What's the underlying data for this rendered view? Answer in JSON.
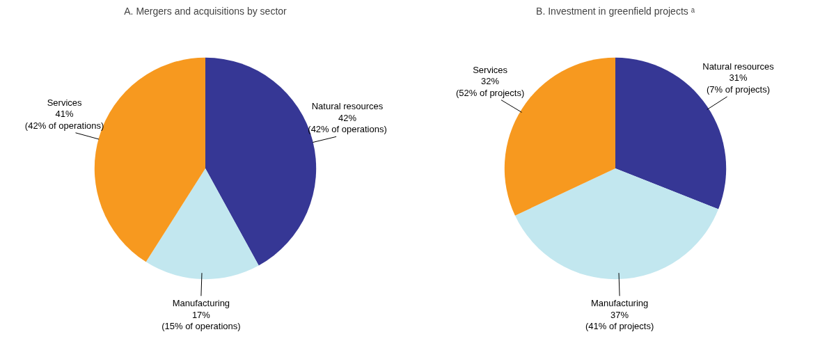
{
  "chart_data": [
    {
      "type": "pie",
      "title": "A. Mergers and acquisitions by sector",
      "categories": [
        "Natural resources",
        "Manufacturing",
        "Services"
      ],
      "values": [
        42,
        17,
        41
      ],
      "colors": [
        "#363795",
        "#c2e7ef",
        "#f7991f"
      ],
      "value_labels": [
        "42%\n(42% of operations)",
        "17%\n(15% of operations)",
        "41%\n(42% of operations)"
      ]
    },
    {
      "type": "pie",
      "title": "B. Investment in greenfield projects ᵃ",
      "categories": [
        "Natural resources",
        "Manufacturing",
        "Services"
      ],
      "values": [
        31,
        37,
        32
      ],
      "colors": [
        "#363795",
        "#c2e7ef",
        "#f7991f"
      ],
      "value_labels": [
        "31%\n(7% of projects)",
        "37%\n(41% of projects)",
        "32%\n(52% of projects)"
      ]
    }
  ]
}
